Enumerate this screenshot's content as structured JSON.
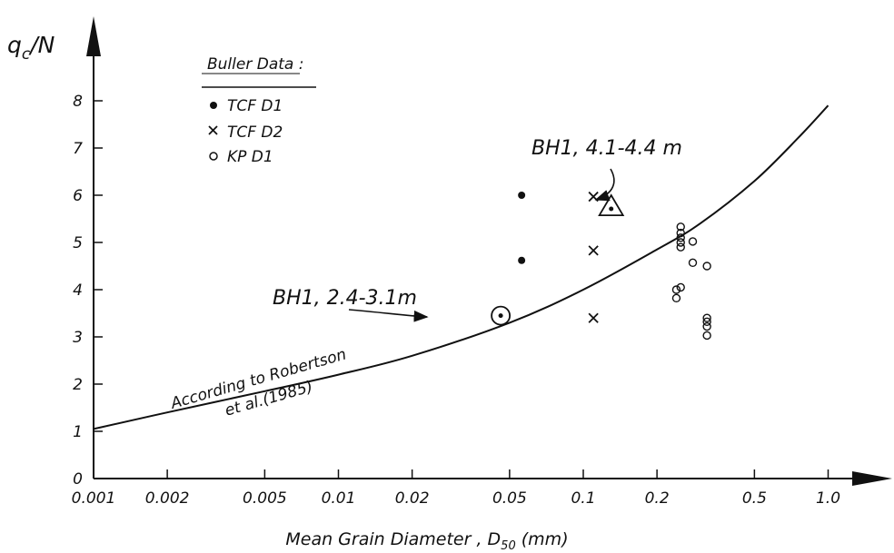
{
  "chart_data": {
    "type": "scatter",
    "title": "",
    "ylabel_main": "q",
    "ylabel_sub": "c",
    "ylabel_tail": "/N",
    "xlabel": "Mean Grain Diameter , D",
    "xlabel_sub": "50",
    "xlabel_tail": "(mm)",
    "x_scale": "log",
    "xlim": [
      0.001,
      5.0
    ],
    "ylim": [
      0,
      9
    ],
    "grid": false,
    "x_ticks": [
      0.001,
      0.002,
      0.005,
      0.01,
      0.02,
      0.05,
      0.1,
      0.2,
      0.5,
      1.0
    ],
    "x_tick_labels": [
      "0.001",
      "0.002",
      "0.005",
      "0.01",
      "0.02",
      "0.05",
      "0.1",
      "0.2",
      "0.5",
      "1.0"
    ],
    "y_ticks": [
      0,
      1,
      2,
      3,
      4,
      5,
      6,
      7,
      8
    ],
    "y_tick_labels": [
      "0",
      "1",
      "2",
      "3",
      "4",
      "5",
      "6",
      "7",
      "8"
    ],
    "legend_title": "Buller Data :",
    "legend_position": "top-left",
    "series": [
      {
        "name": "TCF D1",
        "marker": "dot",
        "points": [
          [
            0.056,
            6.0
          ],
          [
            0.056,
            4.62
          ]
        ]
      },
      {
        "name": "TCF D2",
        "marker": "x",
        "points": [
          [
            0.11,
            5.97
          ],
          [
            0.11,
            4.83
          ],
          [
            0.11,
            3.4
          ]
        ]
      },
      {
        "name": "KP D1",
        "marker": "circle",
        "points": [
          [
            0.25,
            5.33
          ],
          [
            0.25,
            5.2
          ],
          [
            0.25,
            5.1
          ],
          [
            0.25,
            5.0
          ],
          [
            0.25,
            4.9
          ],
          [
            0.28,
            5.02
          ],
          [
            0.28,
            4.57
          ],
          [
            0.32,
            4.5
          ],
          [
            0.24,
            4.0
          ],
          [
            0.24,
            3.82
          ],
          [
            0.25,
            4.05
          ],
          [
            0.32,
            3.4
          ],
          [
            0.32,
            3.32
          ],
          [
            0.32,
            3.22
          ],
          [
            0.32,
            3.03
          ]
        ]
      }
    ],
    "curve": {
      "label_line1": "According to Robertson",
      "label_line2": "et al.(1985)",
      "points": [
        [
          0.001,
          1.05
        ],
        [
          0.002,
          1.4
        ],
        [
          0.005,
          1.85
        ],
        [
          0.01,
          2.2
        ],
        [
          0.02,
          2.6
        ],
        [
          0.05,
          3.3
        ],
        [
          0.1,
          4.0
        ],
        [
          0.2,
          4.85
        ],
        [
          0.3,
          5.4
        ],
        [
          0.5,
          6.3
        ],
        [
          0.75,
          7.2
        ],
        [
          1.0,
          7.9
        ]
      ]
    },
    "special_points": [
      {
        "label": "BH1, 2.4-3.1m",
        "marker": "circle-dot",
        "x": 0.046,
        "y": 3.45
      },
      {
        "label": "BH1, 4.1-4.4 m",
        "marker": "triangle-dot",
        "x": 0.13,
        "y": 5.75
      }
    ]
  }
}
